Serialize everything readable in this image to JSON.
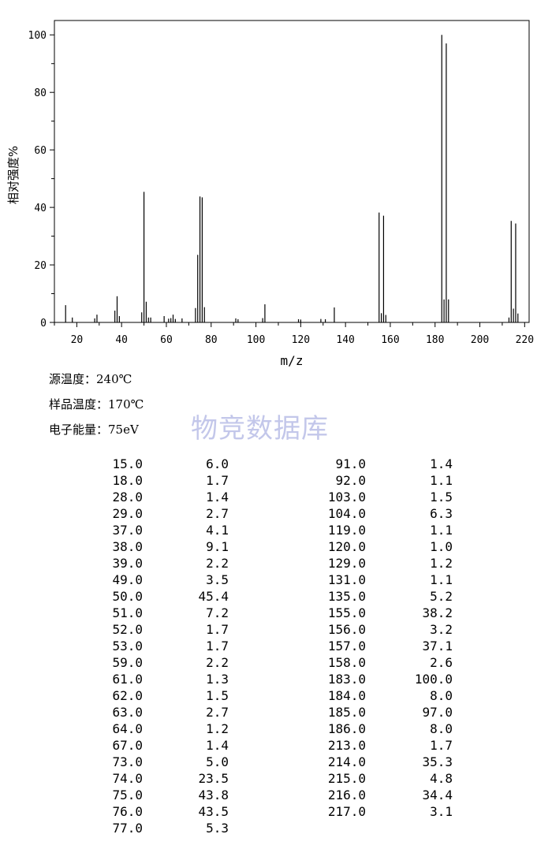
{
  "chart_data": {
    "type": "bar",
    "xlabel": "m/z",
    "ylabel": "相对强度%",
    "xlim": [
      10,
      222
    ],
    "ylim": [
      0,
      105
    ],
    "xticks": [
      20,
      40,
      60,
      80,
      100,
      120,
      140,
      160,
      180,
      200,
      220
    ],
    "yticks": [
      0,
      20,
      40,
      60,
      80,
      100
    ],
    "grid": false,
    "x": [
      15,
      18,
      28,
      29,
      37,
      38,
      39,
      49,
      50,
      51,
      52,
      53,
      59,
      61,
      62,
      63,
      64,
      67,
      73,
      74,
      75,
      76,
      77,
      91,
      92,
      103,
      104,
      119,
      120,
      129,
      131,
      135,
      155,
      156,
      157,
      158,
      183,
      184,
      185,
      186,
      213,
      214,
      215,
      216,
      217
    ],
    "values": [
      6.0,
      1.7,
      1.4,
      2.7,
      4.1,
      9.1,
      2.2,
      3.5,
      45.4,
      7.2,
      1.7,
      1.7,
      2.2,
      1.3,
      1.5,
      2.7,
      1.2,
      1.4,
      5.0,
      23.5,
      43.8,
      43.5,
      5.3,
      1.4,
      1.1,
      1.5,
      6.3,
      1.1,
      1.0,
      1.2,
      1.1,
      5.2,
      38.2,
      3.2,
      37.1,
      2.6,
      100.0,
      8.0,
      97.0,
      8.0,
      1.7,
      35.3,
      4.8,
      34.4,
      3.1
    ]
  },
  "conditions": [
    {
      "label": "源温度：240℃"
    },
    {
      "label": "样品温度：170℃"
    },
    {
      "label": "电子能量：75eV"
    }
  ],
  "watermark": "物竞数据库",
  "peak_table": {
    "left_mz": [
      "15.0",
      "18.0",
      "28.0",
      "29.0",
      "37.0",
      "38.0",
      "39.0",
      "49.0",
      "50.0",
      "51.0",
      "52.0",
      "53.0",
      "59.0",
      "61.0",
      "62.0",
      "63.0",
      "64.0",
      "67.0",
      "73.0",
      "74.0",
      "75.0",
      "76.0",
      "77.0"
    ],
    "left_int": [
      "6.0",
      "1.7",
      "1.4",
      "2.7",
      "4.1",
      "9.1",
      "2.2",
      "3.5",
      "45.4",
      "7.2",
      "1.7",
      "1.7",
      "2.2",
      "1.3",
      "1.5",
      "2.7",
      "1.2",
      "1.4",
      "5.0",
      "23.5",
      "43.8",
      "43.5",
      "5.3"
    ],
    "right_mz": [
      "91.0",
      "92.0",
      "103.0",
      "104.0",
      "119.0",
      "120.0",
      "129.0",
      "131.0",
      "135.0",
      "155.0",
      "156.0",
      "157.0",
      "158.0",
      "183.0",
      "184.0",
      "185.0",
      "186.0",
      "213.0",
      "214.0",
      "215.0",
      "216.0",
      "217.0"
    ],
    "right_int": [
      "1.4",
      "1.1",
      "1.5",
      "6.3",
      "1.1",
      "1.0",
      "1.2",
      "1.1",
      "5.2",
      "38.2",
      "3.2",
      "37.1",
      "2.6",
      "100.0",
      "8.0",
      "97.0",
      "8.0",
      "1.7",
      "35.3",
      "4.8",
      "34.4",
      "3.1"
    ]
  }
}
